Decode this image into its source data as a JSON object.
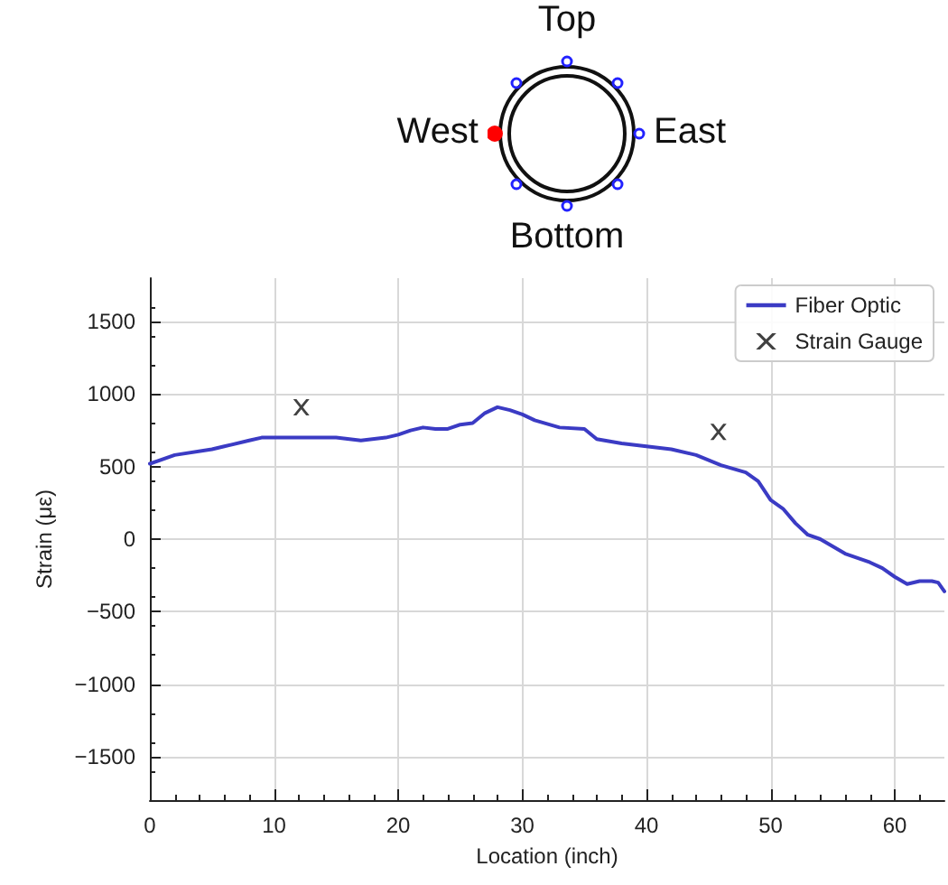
{
  "chart_data": {
    "type": "line",
    "xlabel": "Location (inch)",
    "ylabel": "Strain (με)",
    "annotations": [
      "Top",
      "West",
      "East",
      "Bottom"
    ],
    "xlim": [
      0,
      64
    ],
    "xticks": [
      0,
      10,
      20,
      30,
      40,
      50,
      60
    ],
    "ylim": [
      -1800,
      1800
    ],
    "yticks": [
      -1500,
      -1000,
      -500,
      0,
      500,
      1000,
      1500
    ],
    "grid": true,
    "legend": "top right",
    "series": [
      {
        "name": "Fiber Optic",
        "color": "#3b3bc4",
        "marker": "none",
        "line_style": "solid",
        "x": [
          0,
          2,
          5,
          6,
          8,
          9,
          12,
          15,
          17,
          19,
          20,
          21,
          22,
          23,
          24,
          25,
          26,
          27,
          28,
          29,
          30,
          31,
          33,
          35,
          36,
          38,
          40,
          42,
          44,
          46,
          48,
          49,
          50,
          51,
          52,
          53,
          54,
          55,
          56,
          57,
          58,
          59,
          60,
          61,
          62,
          63,
          63.5,
          64
        ],
        "values": [
          520,
          580,
          620,
          640,
          680,
          700,
          700,
          700,
          680,
          700,
          720,
          750,
          770,
          760,
          760,
          790,
          800,
          870,
          910,
          890,
          860,
          820,
          770,
          760,
          690,
          660,
          640,
          620,
          580,
          510,
          460,
          400,
          270,
          210,
          110,
          30,
          0,
          -50,
          -100,
          -130,
          -160,
          -200,
          -260,
          -310,
          -290,
          -290,
          -300,
          -360
        ]
      },
      {
        "name": "Strain Gauge",
        "type": "scatter",
        "color": "#111111",
        "marker": "cross",
        "x": [
          12.2,
          45.8
        ],
        "values": [
          910,
          740
        ]
      }
    ]
  }
}
